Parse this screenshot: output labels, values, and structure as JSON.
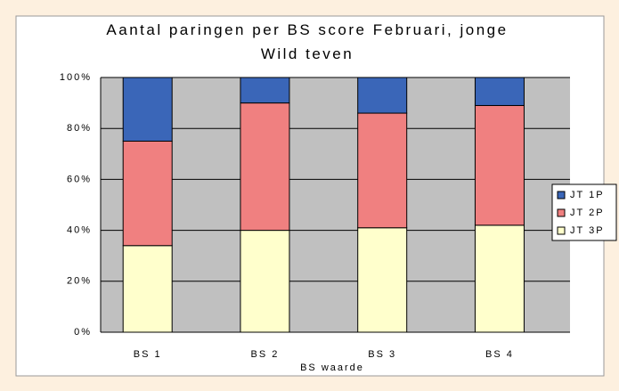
{
  "chart_data": {
    "type": "stacked_bar",
    "title": "Aantal paringen per BS score Februari, jonge Wild teven",
    "x_label": "BS waarde",
    "categories": [
      "BS 1",
      "BS 2",
      "BS 3",
      "BS 4"
    ],
    "series": [
      {
        "name": "JT 1P",
        "color": "#3a66b8",
        "values": [
          25,
          10,
          14,
          11
        ]
      },
      {
        "name": "JT 2P",
        "color": "#f08080",
        "values": [
          41,
          50,
          45,
          47
        ]
      },
      {
        "name": "JT 3P",
        "color": "#ffffcc",
        "values": [
          34,
          40,
          41,
          42
        ]
      }
    ],
    "ylim": [
      0,
      100
    ],
    "yticks": [
      {
        "value": 0,
        "label": "0%"
      },
      {
        "value": 20,
        "label": "20%"
      },
      {
        "value": 40,
        "label": "40%"
      },
      {
        "value": 60,
        "label": "60%"
      },
      {
        "value": 80,
        "label": "80%"
      },
      {
        "value": 100,
        "label": "100%"
      }
    ],
    "grid": true,
    "legend": "right"
  }
}
